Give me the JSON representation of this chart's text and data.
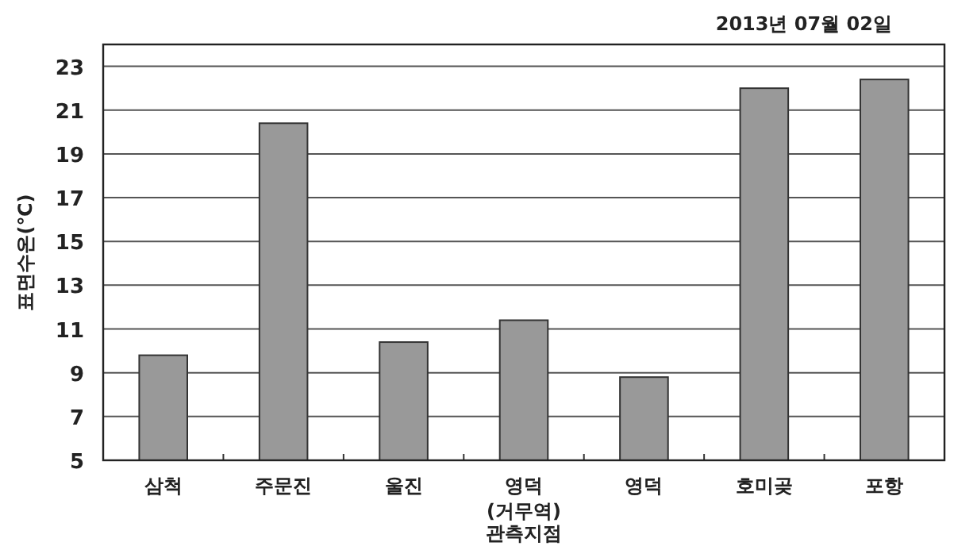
{
  "chart_data": {
    "type": "bar",
    "title": "2013년 07월 02일",
    "xlabel": "관측지점",
    "ylabel": "표면수온(℃)",
    "categories": [
      "삼척",
      "주문진",
      "울진",
      "영덕\n(거무역)",
      "영덕",
      "호미곶",
      "포항"
    ],
    "values": [
      9.8,
      20.4,
      10.4,
      11.4,
      8.8,
      22.0,
      22.4
    ],
    "color": "#999999",
    "ylim": [
      5,
      24
    ],
    "yticks": [
      5,
      7,
      9,
      11,
      13,
      15,
      17,
      19,
      21,
      23
    ],
    "grid": "y"
  }
}
